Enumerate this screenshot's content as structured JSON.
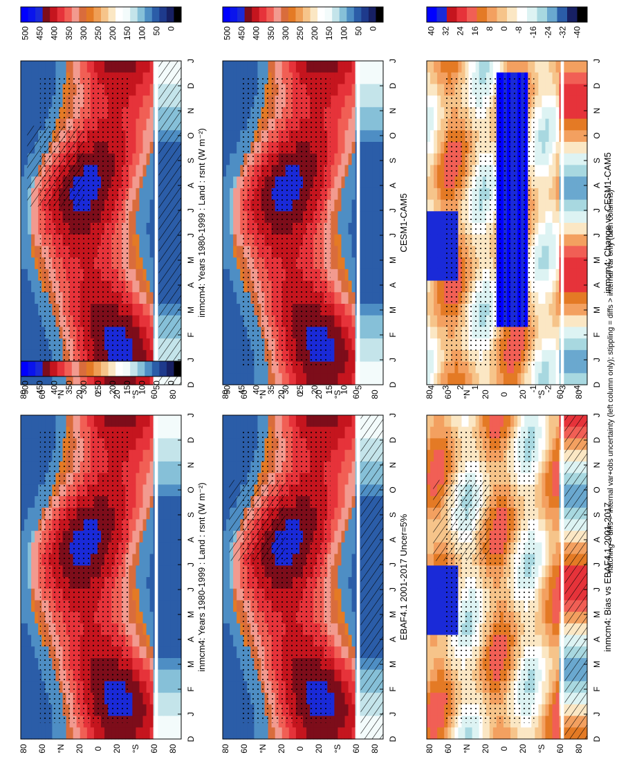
{
  "colors": {
    "abs_scale": [
      "#000000",
      "#172063",
      "#1e3a8c",
      "#2b5da8",
      "#4e8ec4",
      "#86c0d8",
      "#c4e4ea",
      "#f3fbfb",
      "#ffffff",
      "#fbe7c4",
      "#f6c48a",
      "#ef9e55",
      "#e47a25",
      "#d96c3c",
      "#f29a8f",
      "#f15f55",
      "#e6333a",
      "#c5151e",
      "#7d0d1a",
      "#1a2ad8",
      "#0a14ec",
      "#0000ff"
    ],
    "diff_scale": [
      "#000000",
      "#172063",
      "#2b5da8",
      "#6aa8cf",
      "#a8d8e0",
      "#ddf3f3",
      "#ffffff",
      "#fbe7c4",
      "#f6c48a",
      "#f3a060",
      "#e47a25",
      "#f15f55",
      "#e6333a",
      "#c5151e",
      "#1a2ad8",
      "#0000ff"
    ]
  },
  "footer_note": "hatching = diffs > internal var+obs uncertainty (left column only); stippling = diffs > internal var only (both columns)",
  "shared_axes": {
    "month_labels": [
      "D",
      "J",
      "F",
      "M",
      "A",
      "M",
      "J",
      "J",
      "A",
      "S",
      "O",
      "N",
      "D",
      "J"
    ],
    "lat_labels": [
      "80",
      "60",
      "°N",
      "20",
      "0",
      "20",
      "°S",
      "60",
      "80"
    ]
  },
  "chart_data": [
    {
      "type": "heatmap",
      "title": "inmcm4: Years 1980-1999 : Land : rsnt (W m⁻²)",
      "colorbar_ticks": [
        "500",
        "450",
        "400",
        "350",
        "300",
        "250",
        "200",
        "150",
        "100",
        "50",
        "0"
      ],
      "x": "month",
      "y": "latitude",
      "scale": "abs",
      "hatch": true,
      "stipple": true
    },
    {
      "type": "heatmap",
      "title": "inmcm4: Years 1980-1999 : Land : rsnt (W m⁻²)",
      "colorbar_ticks": [
        "500",
        "450",
        "400",
        "350",
        "300",
        "250",
        "200",
        "150",
        "100",
        "50",
        "0"
      ],
      "x": "month",
      "y": "latitude",
      "scale": "abs",
      "hatch": false,
      "stipple": true
    },
    {
      "type": "heatmap",
      "title": "EBAF4.1 2001-2017 Uncer=5%",
      "colorbar_ticks": [
        "500",
        "450",
        "400",
        "350",
        "300",
        "250",
        "200",
        "150",
        "100",
        "50",
        "0"
      ],
      "x": "month",
      "y": "latitude",
      "scale": "abs",
      "hatch": true,
      "stipple": true
    },
    {
      "type": "heatmap",
      "title": "CESM1-CAM5",
      "colorbar_ticks": [
        "500",
        "450",
        "400",
        "350",
        "300",
        "250",
        "200",
        "150",
        "100",
        "50",
        "0"
      ],
      "x": "month",
      "y": "latitude",
      "scale": "abs",
      "hatch": false,
      "stipple": true
    },
    {
      "type": "heatmap",
      "title": "inmcm4: Bias vs EBAF4.1 2001-2017",
      "colorbar_ticks": [
        "40",
        "32",
        "24",
        "16",
        "8",
        "0",
        "-8",
        "-16",
        "-24",
        "-32",
        "-40"
      ],
      "x": "month",
      "y": "latitude",
      "scale": "diff",
      "hatch": true,
      "stipple": true
    },
    {
      "type": "heatmap",
      "title": "inmcm4: Change vs CESM1-CAM5",
      "colorbar_ticks": [
        "40",
        "32",
        "24",
        "16",
        "8",
        "0",
        "-8",
        "-16",
        "-24",
        "-32",
        "-40"
      ],
      "x": "month",
      "y": "latitude",
      "scale": "diff",
      "hatch": false,
      "stipple": true
    }
  ]
}
